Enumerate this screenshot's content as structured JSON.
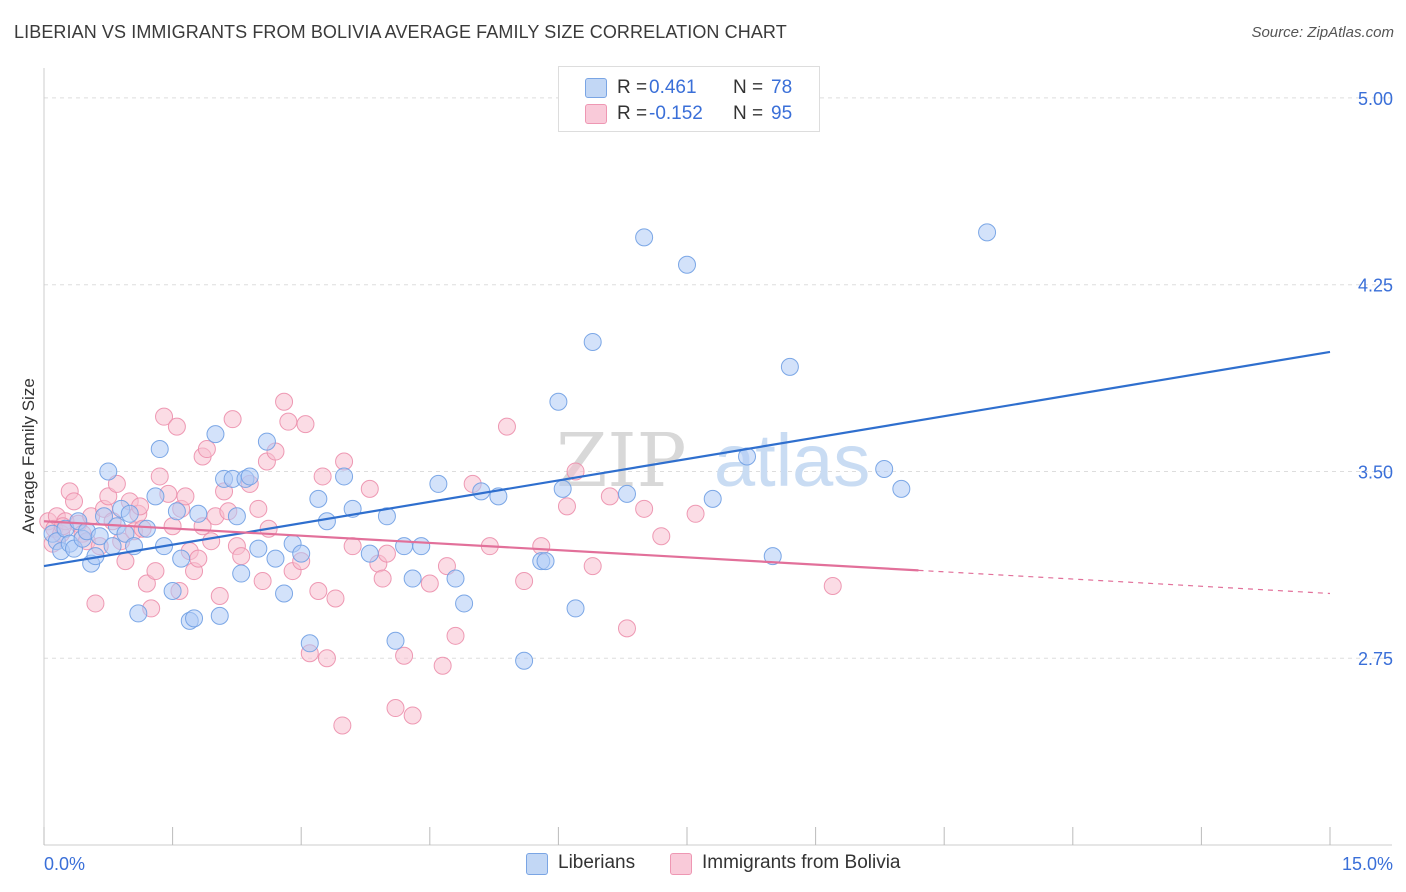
{
  "header": {
    "title": "LIBERIAN VS IMMIGRANTS FROM BOLIVIA AVERAGE FAMILY SIZE CORRELATION CHART",
    "source": "Source: ZipAtlas.com"
  },
  "watermark": {
    "part1": "ZIP",
    "part2": "atlas"
  },
  "legend": {
    "rows": [
      {
        "r_label": "R =",
        "r_value": "0.461",
        "n_label": "N =",
        "n_value": "78"
      },
      {
        "r_label": "R =",
        "r_value": "-0.152",
        "n_label": "N =",
        "n_value": "95"
      }
    ]
  },
  "bottom_legend": {
    "series1": "Liberians",
    "series2": "Immigrants from Bolivia"
  },
  "colors": {
    "blue_fill": "#aecbf5",
    "blue_stroke": "#6f9fe3",
    "blue_line": "#2f6fce",
    "pink_fill": "#f7bfd0",
    "pink_stroke": "#ec8fac",
    "pink_line": "#e2709a",
    "tick_label": "#3a6fd8",
    "grid": "#dddddd"
  },
  "chart_data": {
    "type": "scatter",
    "title": "LIBERIAN VS IMMIGRANTS FROM BOLIVIA AVERAGE FAMILY SIZE CORRELATION CHART",
    "xlabel": "",
    "ylabel": "Average Family Size",
    "xlim": [
      0,
      15
    ],
    "ylim": [
      2.0,
      5.08
    ],
    "x_tick_labels": [
      "0.0%",
      "15.0%"
    ],
    "y_ticks": [
      2.75,
      3.5,
      4.25,
      5.0
    ],
    "y_tick_labels": [
      "2.75",
      "3.50",
      "4.25",
      "5.00"
    ],
    "grid": true,
    "series": [
      {
        "name": "Liberians",
        "r": 0.461,
        "n": 78,
        "trend": {
          "x": [
            0,
            15
          ],
          "y": [
            3.12,
            3.98
          ],
          "dash_from": null
        },
        "points": [
          [
            0.1,
            3.25
          ],
          [
            0.15,
            3.22
          ],
          [
            0.2,
            3.18
          ],
          [
            0.25,
            3.27
          ],
          [
            0.3,
            3.21
          ],
          [
            0.35,
            3.19
          ],
          [
            0.4,
            3.3
          ],
          [
            0.45,
            3.23
          ],
          [
            0.5,
            3.26
          ],
          [
            0.55,
            3.13
          ],
          [
            0.6,
            3.16
          ],
          [
            0.65,
            3.24
          ],
          [
            0.7,
            3.32
          ],
          [
            0.75,
            3.5
          ],
          [
            0.8,
            3.2
          ],
          [
            0.85,
            3.28
          ],
          [
            0.9,
            3.35
          ],
          [
            0.95,
            3.25
          ],
          [
            1.0,
            3.33
          ],
          [
            1.05,
            3.2
          ],
          [
            1.1,
            2.93
          ],
          [
            1.2,
            3.27
          ],
          [
            1.3,
            3.4
          ],
          [
            1.35,
            3.59
          ],
          [
            1.4,
            3.2
          ],
          [
            1.5,
            3.02
          ],
          [
            1.6,
            3.15
          ],
          [
            1.7,
            2.9
          ],
          [
            1.75,
            2.91
          ],
          [
            1.8,
            3.33
          ],
          [
            2.0,
            3.65
          ],
          [
            2.05,
            2.92
          ],
          [
            2.1,
            3.47
          ],
          [
            2.2,
            3.47
          ],
          [
            2.25,
            3.32
          ],
          [
            2.3,
            3.09
          ],
          [
            2.35,
            3.47
          ],
          [
            2.4,
            3.48
          ],
          [
            2.5,
            3.19
          ],
          [
            2.6,
            3.62
          ],
          [
            2.7,
            3.15
          ],
          [
            2.8,
            3.01
          ],
          [
            2.9,
            3.21
          ],
          [
            3.0,
            3.17
          ],
          [
            3.1,
            2.81
          ],
          [
            3.2,
            3.39
          ],
          [
            3.3,
            3.3
          ],
          [
            3.5,
            3.48
          ],
          [
            3.6,
            3.35
          ],
          [
            3.8,
            3.17
          ],
          [
            4.0,
            3.32
          ],
          [
            4.1,
            2.82
          ],
          [
            4.2,
            3.2
          ],
          [
            4.3,
            3.07
          ],
          [
            4.4,
            3.2
          ],
          [
            4.6,
            3.45
          ],
          [
            4.8,
            3.07
          ],
          [
            4.9,
            2.97
          ],
          [
            5.1,
            3.42
          ],
          [
            5.3,
            3.4
          ],
          [
            5.6,
            2.74
          ],
          [
            5.8,
            3.14
          ],
          [
            5.85,
            3.14
          ],
          [
            6.0,
            3.78
          ],
          [
            6.2,
            2.95
          ],
          [
            6.4,
            4.02
          ],
          [
            6.8,
            3.41
          ],
          [
            7.0,
            4.44
          ],
          [
            7.5,
            4.33
          ],
          [
            7.8,
            3.39
          ],
          [
            8.2,
            3.56
          ],
          [
            8.5,
            3.16
          ],
          [
            8.7,
            3.92
          ],
          [
            9.8,
            3.51
          ],
          [
            10.0,
            3.43
          ],
          [
            11.0,
            4.46
          ],
          [
            6.05,
            3.43
          ],
          [
            1.55,
            3.34
          ]
        ]
      },
      {
        "name": "Immigrants from Bolivia",
        "r": -0.152,
        "n": 95,
        "trend": {
          "x": [
            0,
            15
          ],
          "y": [
            3.3,
            3.01
          ],
          "dash_from": 10.2
        },
        "points": [
          [
            0.05,
            3.3
          ],
          [
            0.1,
            3.21
          ],
          [
            0.12,
            3.27
          ],
          [
            0.15,
            3.32
          ],
          [
            0.2,
            3.25
          ],
          [
            0.25,
            3.3
          ],
          [
            0.3,
            3.42
          ],
          [
            0.35,
            3.38
          ],
          [
            0.4,
            3.29
          ],
          [
            0.45,
            3.25
          ],
          [
            0.5,
            3.22
          ],
          [
            0.55,
            3.32
          ],
          [
            0.6,
            2.97
          ],
          [
            0.65,
            3.2
          ],
          [
            0.7,
            3.35
          ],
          [
            0.75,
            3.4
          ],
          [
            0.8,
            3.3
          ],
          [
            0.85,
            3.45
          ],
          [
            0.9,
            3.22
          ],
          [
            0.95,
            3.14
          ],
          [
            1.0,
            3.38
          ],
          [
            1.05,
            3.26
          ],
          [
            1.1,
            3.33
          ],
          [
            1.15,
            3.27
          ],
          [
            1.2,
            3.05
          ],
          [
            1.25,
            2.95
          ],
          [
            1.3,
            3.1
          ],
          [
            1.35,
            3.48
          ],
          [
            1.4,
            3.72
          ],
          [
            1.45,
            3.41
          ],
          [
            1.5,
            3.28
          ],
          [
            1.55,
            3.68
          ],
          [
            1.6,
            3.35
          ],
          [
            1.65,
            3.4
          ],
          [
            1.7,
            3.18
          ],
          [
            1.75,
            3.1
          ],
          [
            1.8,
            3.15
          ],
          [
            1.85,
            3.56
          ],
          [
            1.9,
            3.59
          ],
          [
            1.95,
            3.22
          ],
          [
            2.0,
            3.32
          ],
          [
            2.05,
            3.0
          ],
          [
            2.1,
            3.42
          ],
          [
            2.2,
            3.71
          ],
          [
            2.25,
            3.2
          ],
          [
            2.3,
            3.16
          ],
          [
            2.4,
            3.45
          ],
          [
            2.5,
            3.35
          ],
          [
            2.55,
            3.06
          ],
          [
            2.6,
            3.54
          ],
          [
            2.7,
            3.58
          ],
          [
            2.8,
            3.78
          ],
          [
            2.85,
            3.7
          ],
          [
            2.9,
            3.1
          ],
          [
            3.0,
            3.14
          ],
          [
            3.05,
            3.69
          ],
          [
            3.1,
            2.77
          ],
          [
            3.2,
            3.02
          ],
          [
            3.25,
            3.48
          ],
          [
            3.3,
            2.75
          ],
          [
            3.4,
            2.99
          ],
          [
            3.5,
            3.54
          ],
          [
            3.6,
            3.2
          ],
          [
            3.8,
            3.43
          ],
          [
            3.9,
            3.13
          ],
          [
            4.0,
            3.17
          ],
          [
            4.1,
            2.55
          ],
          [
            4.2,
            2.76
          ],
          [
            4.3,
            2.52
          ],
          [
            4.5,
            3.05
          ],
          [
            4.7,
            3.12
          ],
          [
            4.8,
            2.84
          ],
          [
            5.0,
            3.45
          ],
          [
            5.2,
            3.2
          ],
          [
            5.4,
            3.68
          ],
          [
            5.6,
            3.06
          ],
          [
            5.8,
            3.2
          ],
          [
            6.1,
            3.36
          ],
          [
            6.2,
            3.5
          ],
          [
            6.4,
            3.12
          ],
          [
            6.6,
            3.4
          ],
          [
            6.8,
            2.87
          ],
          [
            7.0,
            3.35
          ],
          [
            7.2,
            3.24
          ],
          [
            7.6,
            3.33
          ],
          [
            3.95,
            3.07
          ],
          [
            4.65,
            2.72
          ],
          [
            9.2,
            3.04
          ],
          [
            2.15,
            3.34
          ],
          [
            1.85,
            3.28
          ],
          [
            1.12,
            3.36
          ],
          [
            0.22,
            3.28
          ],
          [
            3.48,
            2.48
          ],
          [
            2.62,
            3.27
          ],
          [
            1.58,
            3.02
          ]
        ]
      }
    ]
  }
}
